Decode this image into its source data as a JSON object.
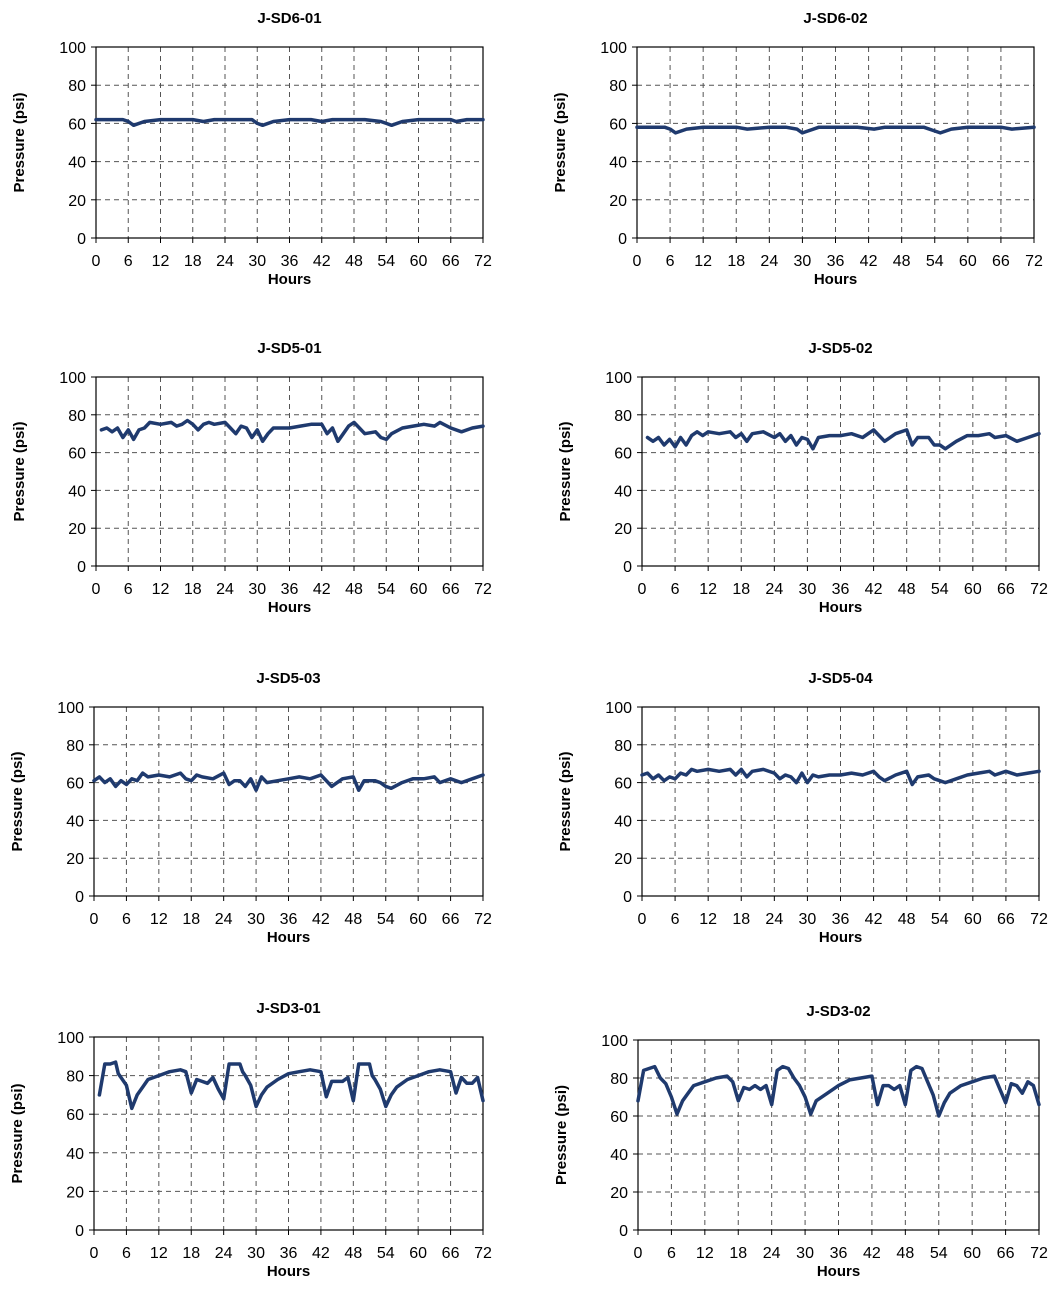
{
  "line_color": "#1f3a6e",
  "grid_color": "#555555",
  "chart_data": [
    {
      "type": "line",
      "title": "J-SD6-01",
      "xlabel": "Hours",
      "ylabel": "Pressure (psi)",
      "xlim": [
        0,
        72
      ],
      "ylim": [
        0,
        100
      ],
      "xticks": [
        0,
        6,
        12,
        18,
        24,
        30,
        36,
        42,
        48,
        54,
        60,
        66,
        72
      ],
      "yticks": [
        0,
        20,
        40,
        60,
        80,
        100
      ],
      "grid": true,
      "series": [
        {
          "x": [
            0,
            1,
            3,
            5,
            6,
            7,
            9,
            12,
            15,
            18,
            20,
            22,
            24,
            27,
            29,
            30,
            31,
            33,
            36,
            40,
            42,
            44,
            47,
            50,
            53,
            54,
            55,
            57,
            60,
            64,
            66,
            67,
            69,
            72
          ],
          "values": [
            62,
            62,
            62,
            62,
            61,
            59,
            61,
            62,
            62,
            62,
            61,
            62,
            62,
            62,
            62,
            60,
            59,
            61,
            62,
            62,
            61,
            62,
            62,
            62,
            61,
            60,
            59,
            61,
            62,
            62,
            62,
            61,
            62,
            62
          ]
        }
      ]
    },
    {
      "type": "line",
      "title": "J-SD6-02",
      "xlabel": "Hours",
      "ylabel": "Pressure (psi)",
      "xlim": [
        0,
        72
      ],
      "ylim": [
        0,
        100
      ],
      "xticks": [
        0,
        6,
        12,
        18,
        24,
        30,
        36,
        42,
        48,
        54,
        60,
        66,
        72
      ],
      "yticks": [
        0,
        20,
        40,
        60,
        80,
        100
      ],
      "grid": true,
      "series": [
        {
          "x": [
            0,
            3,
            5,
            6,
            7,
            9,
            12,
            15,
            18,
            20,
            24,
            27,
            29,
            30,
            31,
            33,
            36,
            40,
            43,
            45,
            48,
            52,
            54,
            55,
            57,
            60,
            64,
            66,
            68,
            72
          ],
          "values": [
            58,
            58,
            58,
            57,
            55,
            57,
            58,
            58,
            58,
            57,
            58,
            58,
            57,
            55,
            56,
            58,
            58,
            58,
            57,
            58,
            58,
            58,
            56,
            55,
            57,
            58,
            58,
            58,
            57,
            58
          ]
        }
      ]
    },
    {
      "type": "line",
      "title": "J-SD5-01",
      "xlabel": "Hours",
      "ylabel": "Pressure (psi)",
      "xlim": [
        0,
        72
      ],
      "ylim": [
        0,
        100
      ],
      "xticks": [
        0,
        6,
        12,
        18,
        24,
        30,
        36,
        42,
        48,
        54,
        60,
        66,
        72
      ],
      "yticks": [
        0,
        20,
        40,
        60,
        80,
        100
      ],
      "grid": true,
      "series": [
        {
          "x": [
            1,
            2,
            3,
            4,
            5,
            6,
            7,
            8,
            9,
            10,
            12,
            14,
            15,
            16,
            17,
            18,
            19,
            20,
            21,
            22,
            24,
            25,
            26,
            27,
            28,
            29,
            30,
            31,
            32,
            33,
            36,
            38,
            40,
            42,
            43,
            44,
            45,
            46,
            47,
            48,
            49,
            50,
            52,
            53,
            54,
            55,
            57,
            59,
            61,
            63,
            64,
            66,
            68,
            70,
            72
          ],
          "values": [
            72,
            73,
            71,
            73,
            68,
            72,
            67,
            72,
            73,
            76,
            75,
            76,
            74,
            75,
            77,
            75,
            72,
            75,
            76,
            75,
            76,
            73,
            70,
            74,
            73,
            68,
            72,
            66,
            70,
            73,
            73,
            74,
            75,
            75,
            70,
            73,
            66,
            70,
            74,
            76,
            73,
            70,
            71,
            68,
            67,
            70,
            73,
            74,
            75,
            74,
            76,
            73,
            71,
            73,
            74
          ]
        }
      ]
    },
    {
      "type": "line",
      "title": "J-SD5-02",
      "xlabel": "Hours",
      "ylabel": "Pressure (psi)",
      "xlim": [
        0,
        72
      ],
      "ylim": [
        0,
        100
      ],
      "xticks": [
        0,
        6,
        12,
        18,
        24,
        30,
        36,
        42,
        48,
        54,
        60,
        66,
        72
      ],
      "yticks": [
        0,
        20,
        40,
        60,
        80,
        100
      ],
      "grid": true,
      "series": [
        {
          "x": [
            1,
            2,
            3,
            4,
            5,
            6,
            7,
            8,
            9,
            10,
            11,
            12,
            14,
            16,
            17,
            18,
            19,
            20,
            22,
            24,
            25,
            26,
            27,
            28,
            29,
            30,
            31,
            32,
            34,
            36,
            38,
            40,
            42,
            43,
            44,
            46,
            48,
            49,
            50,
            52,
            53,
            54,
            55,
            57,
            59,
            61,
            63,
            64,
            66,
            68,
            70,
            72
          ],
          "values": [
            68,
            66,
            68,
            64,
            67,
            63,
            68,
            64,
            69,
            71,
            69,
            71,
            70,
            71,
            68,
            70,
            66,
            70,
            71,
            68,
            70,
            66,
            69,
            64,
            68,
            67,
            62,
            68,
            69,
            69,
            70,
            68,
            72,
            69,
            66,
            70,
            72,
            64,
            68,
            68,
            64,
            64,
            62,
            66,
            69,
            69,
            70,
            68,
            69,
            66,
            68,
            70
          ]
        }
      ]
    },
    {
      "type": "line",
      "title": "J-SD5-03",
      "xlabel": "Hours",
      "ylabel": "Pressure (psi)",
      "xlim": [
        0,
        72
      ],
      "ylim": [
        0,
        100
      ],
      "xticks": [
        0,
        6,
        12,
        18,
        24,
        30,
        36,
        42,
        48,
        54,
        60,
        66,
        72
      ],
      "yticks": [
        0,
        20,
        40,
        60,
        80,
        100
      ],
      "grid": true,
      "series": [
        {
          "x": [
            0,
            1,
            2,
            3,
            4,
            5,
            6,
            7,
            8,
            9,
            10,
            12,
            14,
            16,
            17,
            18,
            19,
            20,
            22,
            24,
            25,
            26,
            27,
            28,
            29,
            30,
            31,
            32,
            34,
            36,
            38,
            40,
            42,
            43,
            44,
            46,
            48,
            49,
            50,
            52,
            53,
            54,
            55,
            57,
            59,
            61,
            63,
            64,
            66,
            68,
            70,
            72
          ],
          "values": [
            61,
            63,
            60,
            62,
            58,
            61,
            59,
            62,
            61,
            65,
            63,
            64,
            63,
            65,
            62,
            61,
            64,
            63,
            62,
            65,
            59,
            61,
            61,
            58,
            62,
            56,
            63,
            60,
            61,
            62,
            63,
            62,
            64,
            61,
            58,
            62,
            63,
            56,
            61,
            61,
            60,
            58,
            57,
            60,
            62,
            62,
            63,
            60,
            62,
            60,
            62,
            64
          ]
        }
      ]
    },
    {
      "type": "line",
      "title": "J-SD5-04",
      "xlabel": "Hours",
      "ylabel": "Pressure (psi)",
      "xlim": [
        0,
        72
      ],
      "ylim": [
        0,
        100
      ],
      "xticks": [
        0,
        6,
        12,
        18,
        24,
        30,
        36,
        42,
        48,
        54,
        60,
        66,
        72
      ],
      "yticks": [
        0,
        20,
        40,
        60,
        80,
        100
      ],
      "grid": true,
      "series": [
        {
          "x": [
            0,
            1,
            2,
            3,
            4,
            5,
            6,
            7,
            8,
            9,
            10,
            12,
            14,
            16,
            17,
            18,
            19,
            20,
            22,
            24,
            25,
            26,
            27,
            28,
            29,
            30,
            31,
            32,
            34,
            36,
            38,
            40,
            42,
            43,
            44,
            46,
            48,
            49,
            50,
            52,
            53,
            54,
            55,
            57,
            59,
            61,
            63,
            64,
            66,
            68,
            70,
            72
          ],
          "values": [
            64,
            65,
            62,
            64,
            61,
            63,
            62,
            65,
            64,
            67,
            66,
            67,
            66,
            67,
            64,
            67,
            63,
            66,
            67,
            65,
            62,
            64,
            63,
            60,
            65,
            60,
            64,
            63,
            64,
            64,
            65,
            64,
            66,
            63,
            61,
            64,
            66,
            59,
            63,
            64,
            62,
            61,
            60,
            62,
            64,
            65,
            66,
            64,
            66,
            64,
            65,
            66
          ]
        }
      ]
    },
    {
      "type": "line",
      "title": "J-SD3-01",
      "xlabel": "Hours",
      "ylabel": "Pressure (psi)",
      "xlim": [
        0,
        72
      ],
      "ylim": [
        0,
        100
      ],
      "xticks": [
        0,
        6,
        12,
        18,
        24,
        30,
        36,
        42,
        48,
        54,
        60,
        66,
        72
      ],
      "yticks": [
        0,
        20,
        40,
        60,
        80,
        100
      ],
      "grid": true,
      "series": [
        {
          "x": [
            1,
            2,
            3,
            4,
            4.5,
            5,
            6,
            7,
            8,
            9,
            10,
            12,
            14,
            16,
            17,
            18,
            19,
            20,
            21,
            22,
            23,
            24,
            25,
            26,
            27,
            27.5,
            28,
            29,
            30,
            31,
            32,
            34,
            36,
            38,
            40,
            42,
            43,
            44,
            45,
            46,
            47,
            48,
            49,
            50,
            51,
            51.5,
            52,
            53,
            54,
            55,
            56,
            58,
            60,
            62,
            64,
            66,
            67,
            68,
            69,
            70,
            71,
            72
          ],
          "values": [
            70,
            86,
            86,
            87,
            81,
            79,
            75,
            63,
            70,
            74,
            78,
            80,
            82,
            83,
            82,
            71,
            78,
            77,
            76,
            79,
            73,
            68,
            86,
            86,
            86,
            82,
            80,
            75,
            64,
            70,
            74,
            78,
            81,
            82,
            83,
            82,
            69,
            77,
            77,
            77,
            79,
            67,
            86,
            86,
            86,
            80,
            78,
            73,
            64,
            70,
            74,
            78,
            80,
            82,
            83,
            82,
            71,
            79,
            76,
            76,
            79,
            67
          ]
        }
      ]
    },
    {
      "type": "line",
      "title": "J-SD3-02",
      "xlabel": "Hours",
      "ylabel": "Pressure (psi)",
      "xlim": [
        0,
        72
      ],
      "ylim": [
        0,
        100
      ],
      "xticks": [
        0,
        6,
        12,
        18,
        24,
        30,
        36,
        42,
        48,
        54,
        60,
        66,
        72
      ],
      "yticks": [
        0,
        20,
        40,
        60,
        80,
        100
      ],
      "grid": true,
      "series": [
        {
          "x": [
            0,
            1,
            2,
            3,
            4,
            5,
            6,
            7,
            8,
            9,
            10,
            12,
            14,
            16,
            17,
            18,
            19,
            20,
            21,
            22,
            23,
            24,
            25,
            26,
            27,
            28,
            29,
            30,
            31,
            32,
            34,
            36,
            38,
            40,
            42,
            43,
            44,
            45,
            46,
            47,
            48,
            49,
            50,
            51,
            52,
            53,
            54,
            55,
            56,
            58,
            60,
            62,
            64,
            66,
            67,
            68,
            69,
            70,
            71,
            72
          ],
          "values": [
            68,
            84,
            85,
            86,
            80,
            77,
            70,
            61,
            68,
            72,
            76,
            78,
            80,
            81,
            78,
            68,
            75,
            74,
            76,
            74,
            76,
            66,
            84,
            86,
            85,
            80,
            76,
            70,
            61,
            68,
            72,
            76,
            79,
            80,
            81,
            66,
            76,
            76,
            74,
            76,
            66,
            84,
            86,
            85,
            78,
            71,
            60,
            67,
            72,
            76,
            78,
            80,
            81,
            67,
            77,
            76,
            72,
            78,
            76,
            66
          ]
        }
      ]
    }
  ]
}
